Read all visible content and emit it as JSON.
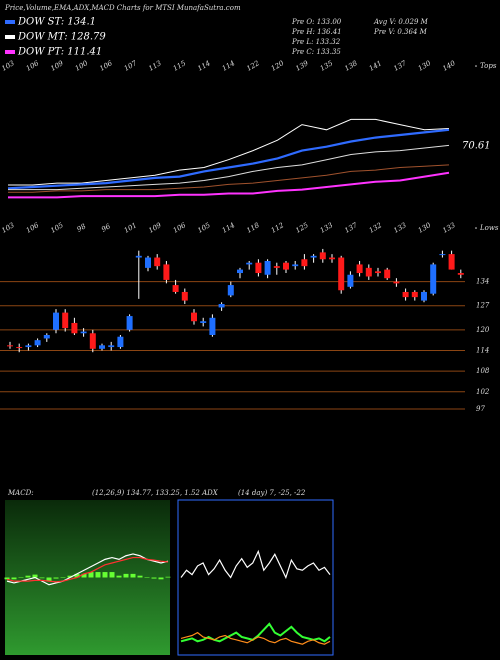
{
  "header": "Price,Volume,EMA,ADX,MACD Charts for MTSI MunafaSutra.com",
  "legend": [
    {
      "name": "DOW ST: 134.1",
      "color": "#2f6bff"
    },
    {
      "name": "DOW MT: 128.79",
      "color": "#ffffff"
    },
    {
      "name": "DOW PT: 111.41",
      "color": "#ff33ff"
    }
  ],
  "stats": [
    "Pre O: 133.00",
    "Pre H: 136.41",
    "Pre L: 133.32",
    "Pre C: 133.35",
    "Avg V: 0.029 M",
    "Pre V: 0.364 M"
  ],
  "chart_data": [
    {
      "type": "line",
      "edge_label": "Tops",
      "annotation": "70.61",
      "categories": [
        "103",
        "106",
        "109",
        "100",
        "106",
        "107",
        "113",
        "115",
        "114",
        "114",
        "122",
        "120",
        "139",
        "135",
        "138",
        "141",
        "137",
        "130",
        "140"
      ],
      "ylim": [
        0,
        100
      ],
      "series": [
        {
          "color": "#ffffff",
          "values": [
            11.5,
            11.5,
            13,
            13,
            15,
            17,
            19,
            23,
            25,
            31,
            38,
            46,
            58,
            54,
            62,
            62,
            58,
            54,
            55
          ]
        },
        {
          "color": "#2f6bff",
          "values": [
            9,
            10,
            11,
            12,
            13,
            15,
            17,
            18,
            22,
            25,
            28,
            32,
            38,
            41,
            45,
            48,
            50,
            52,
            54
          ]
        },
        {
          "color": "#dddddd",
          "values": [
            8,
            8,
            8,
            9,
            10,
            11,
            12,
            13,
            15,
            18,
            22,
            25,
            27,
            31,
            35,
            37,
            38,
            40,
            42
          ]
        },
        {
          "color": "#a0522d",
          "values": [
            6,
            6,
            7,
            7,
            8,
            8,
            8,
            9,
            10,
            12,
            13,
            15,
            17,
            19,
            22,
            23,
            25,
            26,
            27
          ]
        },
        {
          "color": "#ff33ff",
          "values": [
            2,
            2,
            2,
            3,
            3,
            3,
            3,
            4,
            4,
            5,
            5,
            7,
            8,
            10,
            12,
            14,
            15,
            18,
            21
          ]
        }
      ]
    },
    {
      "type": "candlestick",
      "edge_label": "Lows",
      "categories": [
        "103",
        "106",
        "105",
        "98",
        "96",
        "101",
        "109",
        "106",
        "105",
        "114",
        "118",
        "112",
        "125",
        "133",
        "137",
        "132",
        "133",
        "130",
        "133"
      ],
      "ylim": [
        88,
        149
      ],
      "yticks": [
        134,
        127,
        120,
        114,
        108,
        102,
        97
      ],
      "up_color": "#1f6fff",
      "down_color": "#ff1a1a",
      "grid_color": "#8b4513",
      "candles": [
        [
          115.5,
          116.5,
          114.5,
          115.2
        ],
        [
          115,
          116,
          113.5,
          114.8
        ],
        [
          115,
          116,
          114,
          115.5
        ],
        [
          115.5,
          117.5,
          115,
          117
        ],
        [
          117.5,
          119,
          116.5,
          118.5
        ],
        [
          120,
          126,
          119,
          125
        ],
        [
          125,
          126,
          119.5,
          120.5
        ],
        [
          122,
          123.5,
          118.5,
          119
        ],
        [
          119,
          120.5,
          118,
          119.5
        ],
        [
          119,
          120,
          113.5,
          114.5
        ],
        [
          114.5,
          116,
          114,
          115.5
        ],
        [
          115,
          116.5,
          114,
          115.5
        ],
        [
          115,
          118.5,
          114.5,
          118
        ],
        [
          120,
          124.5,
          119.5,
          124
        ],
        [
          141,
          143,
          129,
          141.5
        ],
        [
          138,
          141.5,
          137,
          141
        ],
        [
          141,
          142,
          137.5,
          138.5
        ],
        [
          139,
          140,
          133.5,
          134.5
        ],
        [
          133,
          134.5,
          130.5,
          131
        ],
        [
          131,
          132,
          127.5,
          128.5
        ],
        [
          125,
          126,
          121.5,
          122.5
        ],
        [
          122,
          123.5,
          121,
          122.5
        ],
        [
          118.5,
          124.5,
          118,
          123.5
        ],
        [
          126.5,
          128,
          125.5,
          127.5
        ],
        [
          130,
          134,
          129.5,
          133
        ],
        [
          136.5,
          138,
          135,
          137.5
        ],
        [
          139,
          140,
          137.5,
          139.5
        ],
        [
          139.5,
          140.5,
          135.5,
          136.5
        ],
        [
          136,
          140.5,
          135,
          140
        ],
        [
          138.5,
          139.5,
          136,
          138
        ],
        [
          139.5,
          140,
          136.5,
          137.5
        ],
        [
          138.5,
          140,
          137.5,
          139
        ],
        [
          140.5,
          142,
          137.5,
          138.5
        ],
        [
          141,
          142,
          139.5,
          141.5
        ],
        [
          142.5,
          143.5,
          139.5,
          140.5
        ],
        [
          141,
          142,
          139.5,
          140.5
        ],
        [
          141,
          141.5,
          130.5,
          131.5
        ],
        [
          132.5,
          137,
          132,
          136
        ],
        [
          139,
          140,
          135.5,
          136.5
        ],
        [
          138,
          139,
          134.5,
          135.5
        ],
        [
          137,
          138,
          135.5,
          136.5
        ],
        [
          137.5,
          138,
          134.5,
          135
        ],
        [
          134,
          135,
          132.5,
          133.5
        ],
        [
          131,
          132,
          128.5,
          129.5
        ],
        [
          131,
          131.5,
          128.5,
          129.5
        ],
        [
          128.5,
          131.5,
          128,
          131
        ],
        [
          130.5,
          139.5,
          130,
          139
        ],
        [
          142,
          143,
          141,
          142
        ],
        [
          142,
          143,
          137.5,
          137.5
        ],
        [
          136.5,
          137.5,
          135,
          136
        ]
      ]
    },
    {
      "type": "macd",
      "label": "MACD:",
      "params": "(12,26,9) 134.77, 133.25, 1.52 ADX",
      "ylim": [
        -20,
        20
      ],
      "series": [
        {
          "color": "#ffffff",
          "values": [
            -1,
            -1.5,
            -1,
            -0.5,
            0,
            -1,
            -2,
            -1.5,
            -1,
            0,
            1,
            2,
            3,
            4,
            5,
            5.5,
            5,
            6,
            6.5,
            6,
            5,
            4.5,
            4,
            4.5
          ]
        },
        {
          "color": "#ff3030",
          "values": [
            -0.5,
            -1,
            -1,
            -1,
            -0.8,
            -0.8,
            -1,
            -1.2,
            -1,
            -0.5,
            0,
            1,
            1.5,
            2.5,
            3.5,
            4,
            4.5,
            5,
            5.5,
            5.5,
            5,
            4.8,
            4.5,
            4.3
          ]
        }
      ],
      "histogram": {
        "color": "#66ff33",
        "values": [
          -0.5,
          -0.5,
          0,
          0.5,
          0.8,
          -0.2,
          -1,
          -0.3,
          0,
          0.5,
          1,
          1,
          1.5,
          1.5,
          1.5,
          1.5,
          0.5,
          1,
          1,
          0.5,
          0,
          -0.3,
          -0.5,
          0.2
        ]
      }
    },
    {
      "type": "adx",
      "params": "(14 day) 7, -25, -22",
      "ylim": [
        0,
        100
      ],
      "series": [
        {
          "color": "#ffffff",
          "values": [
            50,
            55,
            52,
            58,
            60,
            52,
            56,
            62,
            55,
            50,
            58,
            63,
            57,
            60,
            68,
            55,
            60,
            66,
            58,
            50,
            62,
            56,
            55,
            58,
            60,
            55,
            57,
            52
          ]
        },
        {
          "color": "#33ff33",
          "values": [
            6,
            7,
            8,
            6,
            7,
            9,
            7,
            6,
            8,
            10,
            12,
            9,
            8,
            7,
            10,
            14,
            18,
            12,
            10,
            13,
            16,
            12,
            9,
            8,
            7,
            8,
            6,
            9
          ]
        },
        {
          "color": "#ff8c1a",
          "values": [
            8,
            9,
            10,
            12,
            9,
            8,
            7,
            9,
            10,
            8,
            7,
            6,
            5,
            7,
            9,
            8,
            6,
            5,
            7,
            8,
            6,
            5,
            4,
            6,
            7,
            5,
            4,
            6
          ]
        }
      ]
    }
  ]
}
